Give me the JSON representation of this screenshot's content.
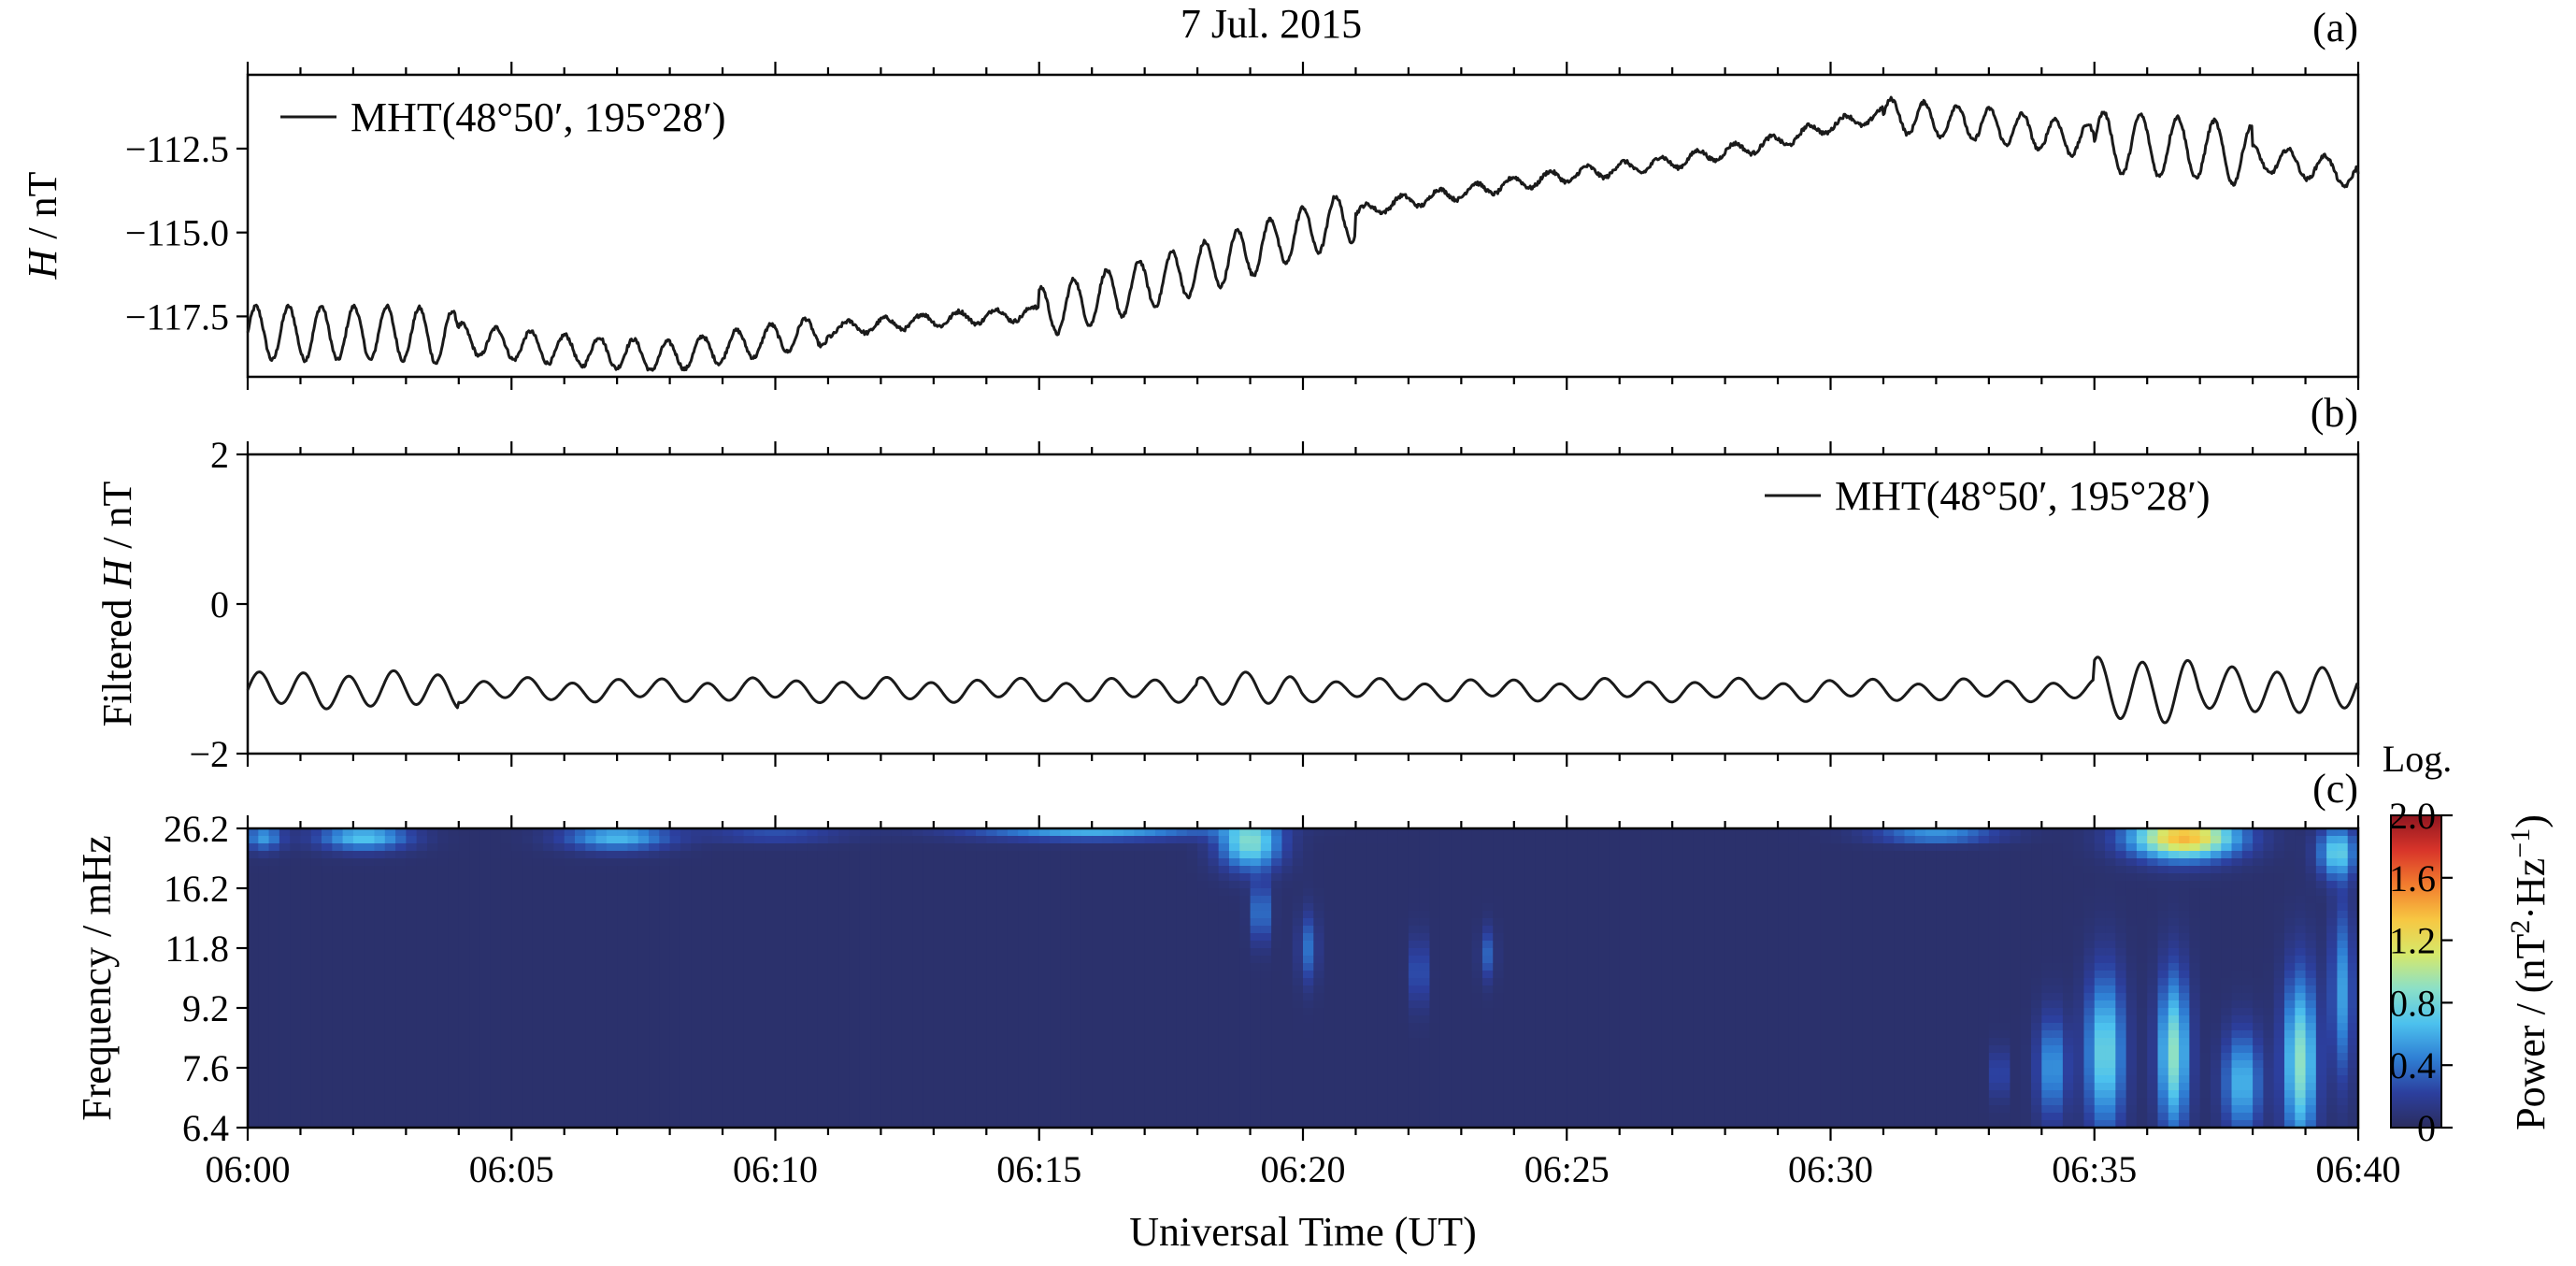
{
  "figure": {
    "date_title": "7 Jul. 2015",
    "xlabel": "Universal Time (UT)"
  },
  "chart_data": [
    {
      "type": "line",
      "panel_label": "(a)",
      "ylabel_italic": "H",
      "ylabel_rest": " / nT",
      "legend": "MHT(48°50′, 195°28′)",
      "xlim_minutes": [
        0,
        40
      ],
      "ylim": [
        -119.3,
        -110.3
      ],
      "yticks": [
        -117.5,
        -115.0,
        -112.5
      ],
      "ytick_labels": [
        "−117.5",
        "−115.0",
        "−112.5"
      ],
      "series": [
        {
          "color": "#1a1a1a",
          "baseline_anchors": [
            [
              0,
              -118.0
            ],
            [
              3,
              -118.0
            ],
            [
              6,
              -118.5
            ],
            [
              8,
              -118.7
            ],
            [
              11,
              -117.9
            ],
            [
              13,
              -117.6
            ],
            [
              15,
              -117.4
            ],
            [
              16,
              -117.0
            ],
            [
              18,
              -116.1
            ],
            [
              20,
              -115.0
            ],
            [
              21.5,
              -114.2
            ],
            [
              23,
              -113.8
            ],
            [
              25,
              -113.3
            ],
            [
              27,
              -112.9
            ],
            [
              29,
              -112.3
            ],
            [
              30,
              -111.8
            ],
            [
              31,
              -111.5
            ],
            [
              33,
              -111.8
            ],
            [
              35,
              -112.3
            ],
            [
              37,
              -112.5
            ],
            [
              39,
              -113.0
            ],
            [
              40,
              -113.3
            ]
          ],
          "oscillations": [
            {
              "t0": 0,
              "t1": 4,
              "period_min": 0.62,
              "amplitude": 0.8
            },
            {
              "t0": 4,
              "t1": 11,
              "period_min": 0.65,
              "amplitude": 0.45
            },
            {
              "t0": 11,
              "t1": 15,
              "period_min": 0.7,
              "amplitude": 0.2
            },
            {
              "t0": 15,
              "t1": 21,
              "period_min": 0.62,
              "amplitude": 0.75
            },
            {
              "t0": 21,
              "t1": 31,
              "period_min": 0.7,
              "amplitude": 0.2
            },
            {
              "t0": 31,
              "t1": 35,
              "period_min": 0.62,
              "amplitude": 0.5
            },
            {
              "t0": 35,
              "t1": 38,
              "period_min": 0.7,
              "amplitude": 0.9
            },
            {
              "t0": 38,
              "t1": 40,
              "period_min": 0.7,
              "amplitude": 0.4
            }
          ]
        }
      ]
    },
    {
      "type": "line",
      "panel_label": "(b)",
      "ylabel_pre": "Filtered ",
      "ylabel_italic": "H",
      "ylabel_rest": " / nT",
      "legend": "MHT(48°50′, 195°28′)",
      "xlim_minutes": [
        0,
        40
      ],
      "ylim": [
        -2,
        2
      ],
      "yticks": [
        -2,
        0,
        2
      ],
      "ytick_labels": [
        "−2",
        "0",
        "2"
      ],
      "series": [
        {
          "color": "#1a1a1a",
          "mean": -1.15,
          "oscillations": [
            {
              "t0": 0,
              "t1": 4,
              "period_min": 0.85,
              "amplitude": 0.22
            },
            {
              "t0": 4,
              "t1": 18,
              "period_min": 0.85,
              "amplitude": 0.13
            },
            {
              "t0": 18,
              "t1": 20,
              "period_min": 0.85,
              "amplitude": 0.2
            },
            {
              "t0": 20,
              "t1": 35,
              "period_min": 0.85,
              "amplitude": 0.12
            },
            {
              "t0": 35,
              "t1": 37,
              "period_min": 0.85,
              "amplitude": 0.4
            },
            {
              "t0": 37,
              "t1": 40,
              "period_min": 0.85,
              "amplitude": 0.28
            }
          ]
        }
      ]
    },
    {
      "type": "heatmap",
      "panel_label": "(c)",
      "ylabel": "Frequency / mHz",
      "xlim_minutes": [
        0,
        40
      ],
      "ytick_labels": [
        "6.4",
        "7.6",
        "9.2",
        "11.8",
        "16.2",
        "26.2"
      ],
      "xtick_labels": [
        "06:00",
        "06:05",
        "06:10",
        "06:15",
        "06:20",
        "06:25",
        "06:30",
        "06:35",
        "06:40"
      ],
      "colorbar": {
        "title": "Log.",
        "label": "Power / (nT²·Hz⁻¹)",
        "label_base": "Power / (nT",
        "label_mid": "·Hz",
        "label_end": ")",
        "label_sup1": "2",
        "label_sup2": "−1",
        "range": [
          0,
          2.0
        ],
        "ticks": [
          "0",
          "0.4",
          "0.8",
          "1.2",
          "1.6",
          "2.0"
        ],
        "colors": [
          "#2b2d5e",
          "#2c3f9e",
          "#2f7fd4",
          "#4cc1ee",
          "#8be0c8",
          "#d6e86a",
          "#f7c742",
          "#f27c2e",
          "#d8342a",
          "#8f1620"
        ]
      },
      "background_value": 0.05,
      "blobs": [
        {
          "t": 0.3,
          "f": 0.97,
          "st": 0.25,
          "sf": 0.03,
          "amp": 0.5
        },
        {
          "t": 2.2,
          "f": 0.97,
          "st": 0.6,
          "sf": 0.03,
          "amp": 0.65
        },
        {
          "t": 7.0,
          "f": 0.97,
          "st": 0.7,
          "sf": 0.03,
          "amp": 0.6
        },
        {
          "t": 10.0,
          "f": 0.98,
          "st": 0.9,
          "sf": 0.02,
          "amp": 0.25
        },
        {
          "t": 16.0,
          "f": 0.99,
          "st": 1.6,
          "sf": 0.02,
          "amp": 0.55
        },
        {
          "t": 19.0,
          "f": 0.95,
          "st": 0.4,
          "sf": 0.06,
          "amp": 0.8
        },
        {
          "t": 19.2,
          "f": 0.72,
          "st": 0.12,
          "sf": 0.07,
          "amp": 0.45
        },
        {
          "t": 20.1,
          "f": 0.6,
          "st": 0.12,
          "sf": 0.08,
          "amp": 0.35
        },
        {
          "t": 22.2,
          "f": 0.52,
          "st": 0.1,
          "sf": 0.08,
          "amp": 0.35
        },
        {
          "t": 23.5,
          "f": 0.58,
          "st": 0.1,
          "sf": 0.06,
          "amp": 0.3
        },
        {
          "t": 32.0,
          "f": 0.98,
          "st": 0.8,
          "sf": 0.02,
          "amp": 0.5
        },
        {
          "t": 36.7,
          "f": 0.97,
          "st": 0.7,
          "sf": 0.05,
          "amp": 1.35
        },
        {
          "t": 39.6,
          "f": 0.92,
          "st": 0.25,
          "sf": 0.06,
          "amp": 0.7
        },
        {
          "t": 33.2,
          "f": 0.18,
          "st": 0.1,
          "sf": 0.06,
          "amp": 0.3
        },
        {
          "t": 34.2,
          "f": 0.2,
          "st": 0.2,
          "sf": 0.12,
          "amp": 0.5
        },
        {
          "t": 35.2,
          "f": 0.25,
          "st": 0.25,
          "sf": 0.18,
          "amp": 0.75
        },
        {
          "t": 36.5,
          "f": 0.25,
          "st": 0.2,
          "sf": 0.18,
          "amp": 0.85
        },
        {
          "t": 37.8,
          "f": 0.15,
          "st": 0.25,
          "sf": 0.12,
          "amp": 0.6
        },
        {
          "t": 38.9,
          "f": 0.22,
          "st": 0.22,
          "sf": 0.2,
          "amp": 0.85
        },
        {
          "t": 39.7,
          "f": 0.45,
          "st": 0.15,
          "sf": 0.2,
          "amp": 0.5
        }
      ]
    }
  ]
}
